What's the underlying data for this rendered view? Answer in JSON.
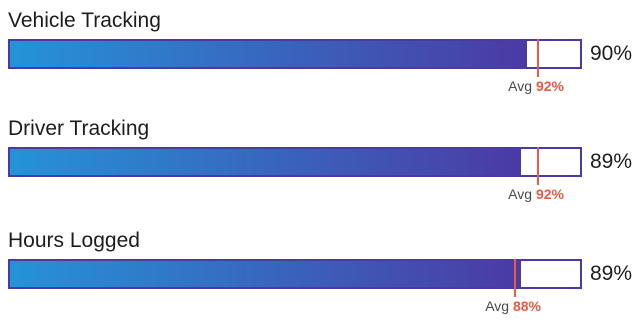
{
  "chart_data": {
    "type": "bar",
    "orientation": "horizontal",
    "xlim": [
      0,
      100
    ],
    "unit": "%",
    "avg_label": "Avg",
    "colors": {
      "fill_start": "#2593d8",
      "fill_end": "#4b3aa4",
      "track_border": "#4b3aa4",
      "avg_marker": "#ec5a43"
    },
    "categories": [
      "Vehicle Tracking",
      "Driver Tracking",
      "Hours Logged"
    ],
    "values": [
      90,
      89,
      89
    ],
    "averages": [
      92,
      92,
      88
    ],
    "value_labels": [
      "90%",
      "89%",
      "89%"
    ],
    "average_labels": [
      "92%",
      "92%",
      "88%"
    ]
  }
}
